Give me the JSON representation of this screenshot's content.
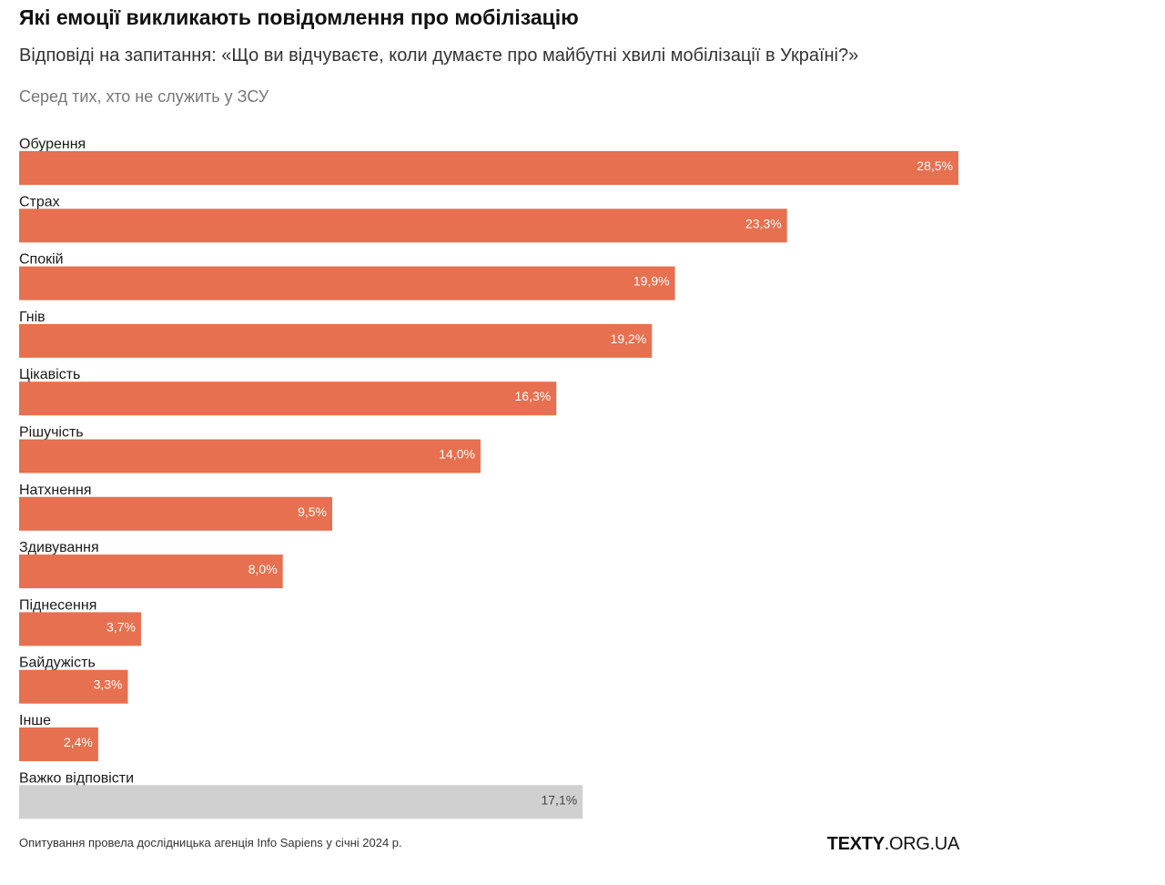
{
  "header": {
    "title": "Які емоції викликають повідомлення про мобілізацію",
    "subtitle": "Відповіді на запитання: «Що ви відчуваєте, коли думаєте про майбутні хвилі мобілізації в Україні?»",
    "note": "Серед тих, хто не служить у ЗСУ"
  },
  "chart_data": {
    "type": "bar",
    "orientation": "horizontal",
    "categories": [
      "Обурення",
      "Страх",
      "Спокій",
      "Гнів",
      "Цікавість",
      "Рішучість",
      "Натхнення",
      "Здивування",
      "Піднесення",
      "Байдужість",
      "Інше",
      "Важко відповісти"
    ],
    "values": [
      28.5,
      23.3,
      19.9,
      19.2,
      16.3,
      14.0,
      9.5,
      8.0,
      3.7,
      3.3,
      2.4,
      17.1
    ],
    "value_labels": [
      "28,5%",
      "23,3%",
      "19,9%",
      "19,2%",
      "16,3%",
      "14,0%",
      "9,5%",
      "8,0%",
      "3,7%",
      "3,3%",
      "2,4%",
      "17,1%"
    ],
    "colors": [
      "#e6704f",
      "#e6704f",
      "#e6704f",
      "#e6704f",
      "#e6704f",
      "#e6704f",
      "#e6704f",
      "#e6704f",
      "#e6704f",
      "#e6704f",
      "#e6704f",
      "#d0d0d0"
    ],
    "value_label_colors": [
      "#ffffff",
      "#ffffff",
      "#ffffff",
      "#ffffff",
      "#ffffff",
      "#ffffff",
      "#ffffff",
      "#ffffff",
      "#ffffff",
      "#ffffff",
      "#ffffff",
      "#444444"
    ],
    "xlim": [
      0,
      28.5
    ],
    "grid": false,
    "legend": "none"
  },
  "footer": {
    "source": "Опитування провела дослідницька агенція Info Sapiens у січні 2024 р.",
    "brand_bold": "TEXTY",
    "brand_rest": ".ORG.UA"
  }
}
